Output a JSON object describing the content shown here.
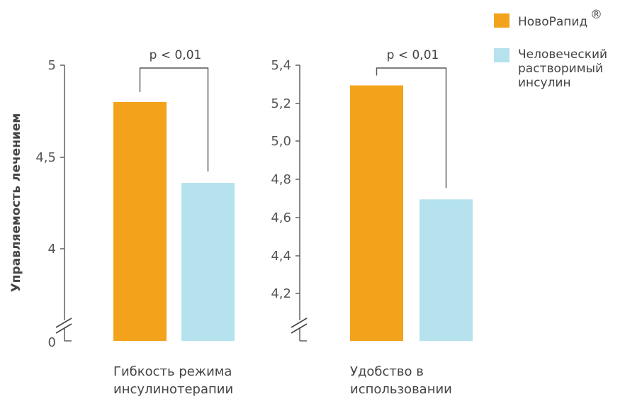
{
  "chart_data": [
    {
      "type": "bar",
      "ylabel": "Управляемость лечением",
      "category_lines": [
        "Гибкость режима",
        "инсулинотерапии"
      ],
      "yticks": [
        "5",
        "4,5",
        "4",
        "0"
      ],
      "ytick_values": [
        5,
        4.5,
        4
      ],
      "ylim": [
        3.5,
        5.0
      ],
      "axis_break": true,
      "series": [
        {
          "name": "НовоРапид",
          "values": [
            4.8
          ]
        },
        {
          "name": "Человеческий растворимый инсулин",
          "values": [
            4.36
          ]
        }
      ],
      "significance": "p < 0,01"
    },
    {
      "type": "bar",
      "category_lines": [
        "Удобство в",
        "использовании"
      ],
      "yticks": [
        "5,4",
        "5,2",
        "5,0",
        "4,8",
        "4,6",
        "4,4",
        "4,2"
      ],
      "ytick_values": [
        5.4,
        5.2,
        5.0,
        4.8,
        4.6,
        4.4,
        4.2
      ],
      "ylim": [
        3.9,
        5.4
      ],
      "axis_break": true,
      "series": [
        {
          "name": "НовоРапид",
          "values": [
            5.29
          ]
        },
        {
          "name": "Человеческий растворимый инсулин",
          "values": [
            4.67
          ]
        }
      ],
      "significance": "p < 0,01"
    }
  ],
  "legend": {
    "position": "top-right",
    "items": [
      {
        "lines": [
          "НовоРапид"
        ],
        "superscript": "®",
        "color": "#f2a31b"
      },
      {
        "lines": [
          "Человеческий",
          "растворимый",
          "инсулин"
        ],
        "color": "#b6e2ee"
      }
    ]
  },
  "colors": {
    "novorapid": "#f2a31b",
    "human": "#b6e2ee"
  }
}
